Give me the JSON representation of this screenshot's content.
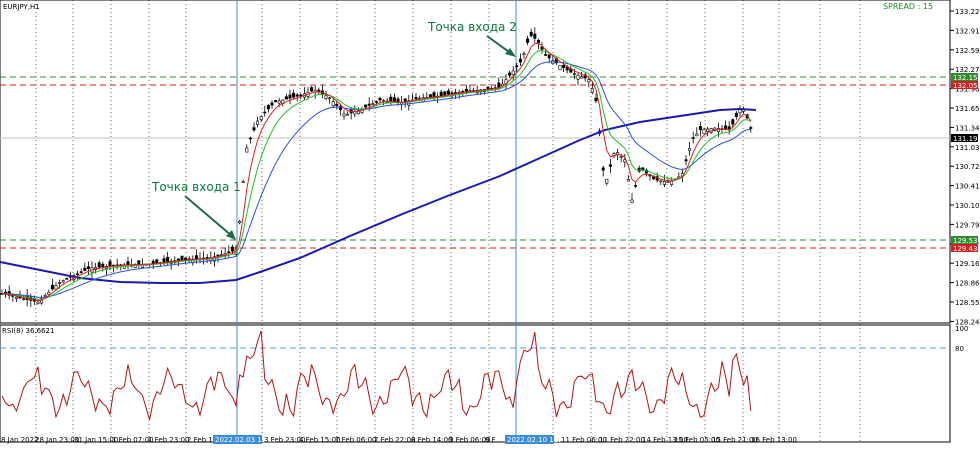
{
  "header": {
    "symbol": "EURJPY,H1",
    "spread": "SPREAD : 15"
  },
  "annotations": [
    {
      "text": "Точка входа 1"
    },
    {
      "text": "Точка входа 2"
    }
  ],
  "indicator": {
    "label": "RSI(8) 36.6621",
    "levels": [
      "100",
      "80"
    ]
  },
  "price_axis": [
    "133.225",
    "132.915",
    "132.595",
    "132.275",
    "131.965",
    "131.655",
    "131.345",
    "131.035",
    "130.725",
    "130.415",
    "130.105",
    "129.795",
    "129.470",
    "129.160",
    "128.860",
    "128.550",
    "128.240"
  ],
  "price_tags": [
    {
      "value": "132.153",
      "color": "#2e8b2e"
    },
    {
      "value": "132.053",
      "color": "#d42020"
    },
    {
      "value": "131.194",
      "color": "#000000"
    },
    {
      "value": "129.531",
      "color": "#2e8b2e"
    },
    {
      "value": "129.434",
      "color": "#d42020"
    }
  ],
  "time_axis": [
    "8 Jan 2022",
    "28 Jan 23:00",
    "31 Jan 15:00",
    "1 Feb 07:00",
    "1 Feb 23:00",
    "2 Feb 15:00",
    "2022.02.03 15:00",
    "3 Feb 23:00",
    "4 Feb 15:00",
    "7 Feb 06:00",
    "7 Feb 22:00",
    "8 Feb 14:00",
    "9 Feb 06:00",
    "9 F",
    "2022.02.10 11:00",
    "11 Feb 06:00",
    "11 Feb 22:00",
    "14 Feb 13:00",
    "15 Feb 05:00",
    "15 Feb 21:00",
    "16 Feb 13:00"
  ],
  "colors": {
    "ma_long": "#1a1ab0",
    "ma_blue": "#2a4fe0",
    "ma_green": "#22c022",
    "ma_red": "#e02020",
    "candle": "#000000",
    "rsi": "#b01515",
    "level_dash": "#4aa0e6",
    "vline": "#3a8cdc"
  },
  "chart_data": {
    "type": "candlestick",
    "symbol": "EURJPY",
    "timeframe": "H1",
    "ylim": [
      128.24,
      133.225
    ],
    "resistance_levels": [
      132.153,
      132.053
    ],
    "support_levels": [
      129.531,
      129.434
    ],
    "current_price": 131.194,
    "series": [
      {
        "name": "RSI(8)",
        "last": 36.6621,
        "levels": [
          100,
          80
        ]
      }
    ]
  }
}
